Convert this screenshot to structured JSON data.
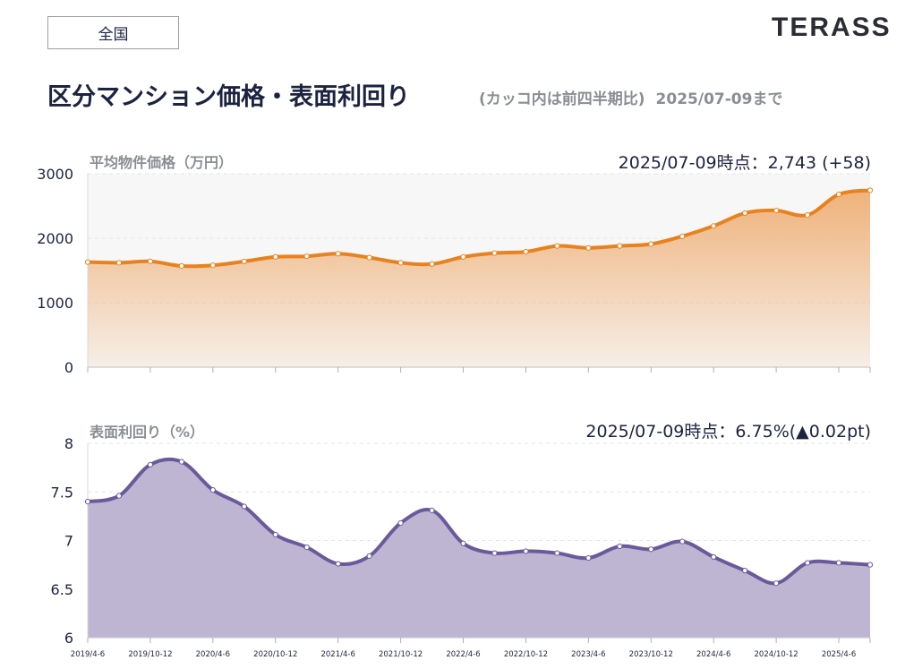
{
  "header": {
    "region_button": "全国",
    "logo": "TERASS",
    "title": "区分マンション価格・表面利回り",
    "subtitle_note": "(カッコ内は前四半期比)",
    "subtitle_date": "2025/07-09まで"
  },
  "colors": {
    "price_line": "#e8821e",
    "price_fill_top": "#efae74",
    "yield_line": "#6a5a9c",
    "yield_fill": "#bdb5d1",
    "text": "#1c2340",
    "muted": "#8a8e94"
  },
  "chart_data": [
    {
      "type": "area",
      "title": "平均物件価格（万円）",
      "info": "2025/07-09時点：2,743 (+58)",
      "ylim": [
        0,
        3000
      ],
      "yticks": [
        "0",
        "1000",
        "2000",
        "3000"
      ],
      "ytick_values": [
        0,
        1000,
        2000,
        3000
      ],
      "x": [
        "2019/4-6",
        "2019/7-9",
        "2019/10-12",
        "2020/1-3",
        "2020/4-6",
        "2020/7-9",
        "2020/10-12",
        "2021/1-3",
        "2021/4-6",
        "2021/7-9",
        "2021/10-12",
        "2022/1-3",
        "2022/4-6",
        "2022/7-9",
        "2022/10-12",
        "2023/1-3",
        "2023/4-6",
        "2023/7-9",
        "2023/10-12",
        "2024/1-3",
        "2024/4-6",
        "2024/7-9",
        "2024/10-12",
        "2025/1-3",
        "2025/4-6",
        "2025/7-9"
      ],
      "values": [
        1630,
        1620,
        1640,
        1570,
        1580,
        1640,
        1710,
        1720,
        1760,
        1700,
        1620,
        1600,
        1710,
        1770,
        1790,
        1880,
        1850,
        1880,
        1910,
        2030,
        2190,
        2390,
        2430,
        2360,
        2680,
        2743
      ]
    },
    {
      "type": "area",
      "title": "表面利回り（%）",
      "info": "2025/07-09時点：6.75%(▲0.02pt)",
      "ylim": [
        6,
        8
      ],
      "yticks": [
        "6",
        "6.5",
        "7",
        "7.5",
        "8"
      ],
      "ytick_values": [
        6,
        6.5,
        7,
        7.5,
        8
      ],
      "x": [
        "2019/4-6",
        "2019/7-9",
        "2019/10-12",
        "2020/1-3",
        "2020/4-6",
        "2020/7-9",
        "2020/10-12",
        "2021/1-3",
        "2021/4-6",
        "2021/7-9",
        "2021/10-12",
        "2022/1-3",
        "2022/4-6",
        "2022/7-9",
        "2022/10-12",
        "2023/1-3",
        "2023/4-6",
        "2023/7-9",
        "2023/10-12",
        "2024/1-3",
        "2024/4-6",
        "2024/7-9",
        "2024/10-12",
        "2025/1-3",
        "2025/4-6",
        "2025/7-9"
      ],
      "xtick_labels": [
        "2019/4-6",
        "2019/10-12",
        "2020/4-6",
        "2020/10-12",
        "2021/4-6",
        "2021/10-12",
        "2022/4-6",
        "2022/10-12",
        "2023/4-6",
        "2023/10-12",
        "2024/4-6",
        "2024/10-12",
        "2025/4-6"
      ],
      "values": [
        7.4,
        7.46,
        7.78,
        7.81,
        7.52,
        7.35,
        7.06,
        6.93,
        6.76,
        6.84,
        7.18,
        7.31,
        6.97,
        6.87,
        6.89,
        6.87,
        6.82,
        6.94,
        6.91,
        6.99,
        6.83,
        6.69,
        6.56,
        6.77,
        6.77,
        6.75
      ]
    }
  ]
}
